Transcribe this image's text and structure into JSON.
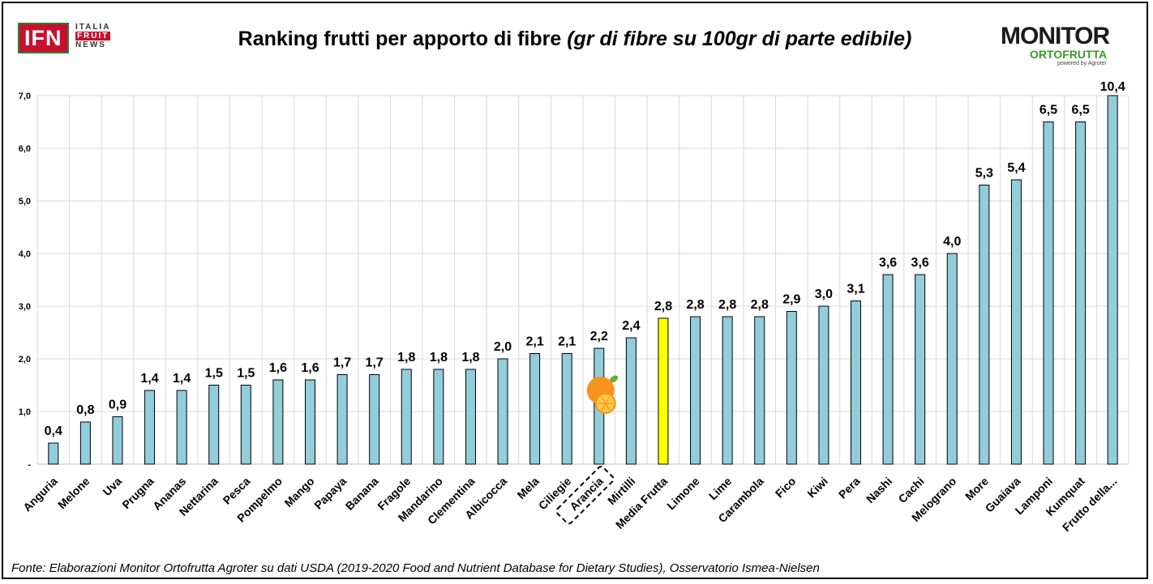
{
  "logos": {
    "ifn": {
      "mark": "IFN",
      "line1": "ITALIA",
      "line2": "FRUIT",
      "line3": "NEWS"
    },
    "monitor": {
      "line1": "MONITOR",
      "line2": "ORTOFRUTTA",
      "line3": "powered by Agroter"
    }
  },
  "colors": {
    "bar": "#92cddc",
    "highlight": "#ffff00",
    "grid": "#d9d9d9"
  },
  "source_note": "Fonte: Elaborazioni Monitor Ortofrutta Agroter su dati USDA (2019-2020 Food and Nutrient Database for Dietary Studies), Osservatorio Ismea-Nielsen",
  "chart_data": {
    "type": "bar",
    "title": "Ranking frutti per apporto di fibre",
    "subtitle": "(gr di fibre su 100gr di parte edibile)",
    "xlabel": "",
    "ylabel": "",
    "ylim": [
      0,
      7
    ],
    "yticks": [
      "-",
      "1,0",
      "2,0",
      "3,0",
      "4,0",
      "5,0",
      "6,0",
      "7,0"
    ],
    "grid": true,
    "legend": "none",
    "categories": [
      "Anguria",
      "Melone",
      "Uva",
      "Prugna",
      "Ananas",
      "Nettarina",
      "Pesca",
      "Pompelmo",
      "Mango",
      "Papaya",
      "Banana",
      "Fragole",
      "Mandarino",
      "Clementina",
      "Albicocca",
      "Mela",
      "Ciliegie",
      "Arancia",
      "Mirtilli",
      "Media Frutta",
      "Limone",
      "Lime",
      "Carambola",
      "Fico",
      "Kiwi",
      "Pera",
      "Nashi",
      "Cachi",
      "Melograno",
      "More",
      "Guaiava",
      "Lamponi",
      "Kumquat",
      "Frutto della..."
    ],
    "values": [
      0.4,
      0.8,
      0.9,
      1.4,
      1.4,
      1.5,
      1.5,
      1.6,
      1.6,
      1.7,
      1.7,
      1.8,
      1.8,
      1.8,
      2.0,
      2.1,
      2.1,
      2.2,
      2.4,
      2.77,
      2.8,
      2.8,
      2.8,
      2.9,
      3.0,
      3.1,
      3.6,
      3.6,
      4.0,
      5.3,
      5.4,
      6.5,
      6.5,
      10.4
    ],
    "data_labels": [
      "0,4",
      "0,8",
      "0,9",
      "1,4",
      "1,4",
      "1,5",
      "1,5",
      "1,6",
      "1,6",
      "1,7",
      "1,7",
      "1,8",
      "1,8",
      "1,8",
      "2,0",
      "2,1",
      "2,1",
      "2,2",
      "2,4",
      "2,8",
      "2,8",
      "2,8",
      "2,8",
      "2,9",
      "3,0",
      "3,1",
      "3,6",
      "3,6",
      "4,0",
      "5,3",
      "5,4",
      "6,5",
      "6,5",
      "10,4"
    ],
    "highlight_category": "Media Frutta",
    "boxed_category": "Arancia",
    "annotation_icon": "orange-fruit-icon"
  }
}
